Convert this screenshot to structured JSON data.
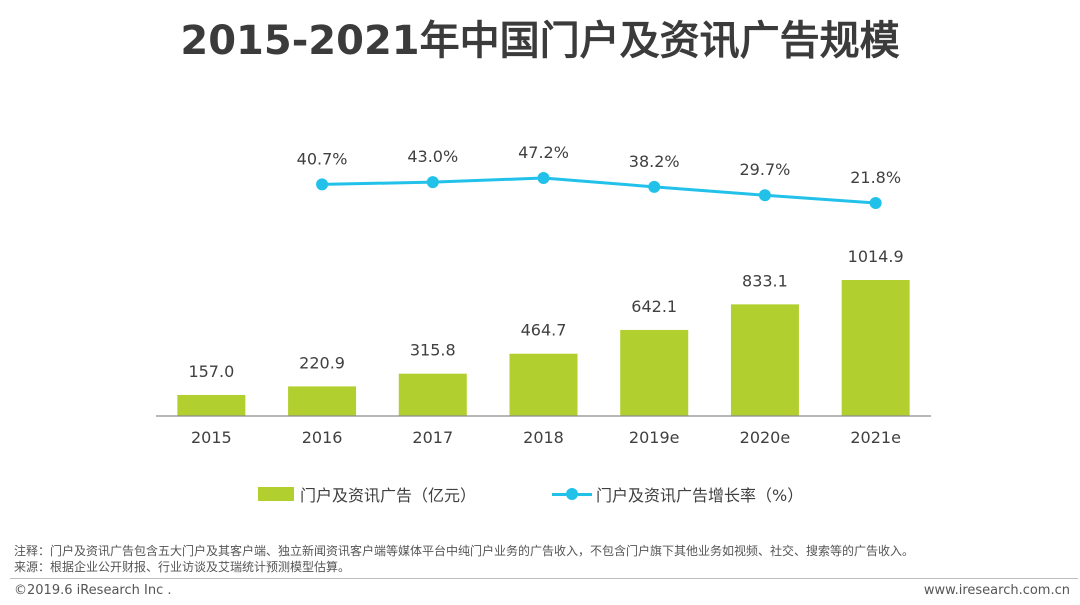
{
  "title": "2015-2021年中国门户及资讯广告规模",
  "colors": {
    "bar": "#b1cf2f",
    "line": "#22c1ea",
    "axis": "#8c8c8c",
    "text": "#404040"
  },
  "chart_data": {
    "type": "bar",
    "categories": [
      "2015",
      "2016",
      "2017",
      "2018",
      "2019e",
      "2020e",
      "2021e"
    ],
    "series": [
      {
        "name": "门户及资讯广告（亿元）",
        "type": "bar",
        "values": [
          157.0,
          220.9,
          315.8,
          464.7,
          642.1,
          833.1,
          1014.9
        ],
        "labels": [
          "157.0",
          "220.9",
          "315.8",
          "464.7",
          "642.1",
          "833.1",
          "1014.9"
        ]
      },
      {
        "name": "门户及资讯广告增长率（%）",
        "type": "line",
        "values": [
          null,
          40.7,
          43.0,
          47.2,
          38.2,
          29.7,
          21.8
        ],
        "labels": [
          null,
          "40.7%",
          "43.0%",
          "47.2%",
          "38.2%",
          "29.7%",
          "21.8%"
        ]
      }
    ],
    "legend_position": "bottom",
    "grid": false
  },
  "legend": {
    "bar_label": "门户及资讯广告（亿元）",
    "line_label": "门户及资讯广告增长率（%）"
  },
  "notes": {
    "note": "注释：门户及资讯广告包含五大门户及其客户端、独立新闻资讯客户端等媒体平台中纯门户业务的广告收入，不包含门户旗下其他业务如视频、社交、搜索等的广告收入。",
    "source": "来源：根据企业公开财报、行业访谈及艾瑞统计预测模型估算。"
  },
  "footer": {
    "copyright": "©2019.6 iResearch Inc .",
    "website": "www.iresearch.com.cn"
  }
}
